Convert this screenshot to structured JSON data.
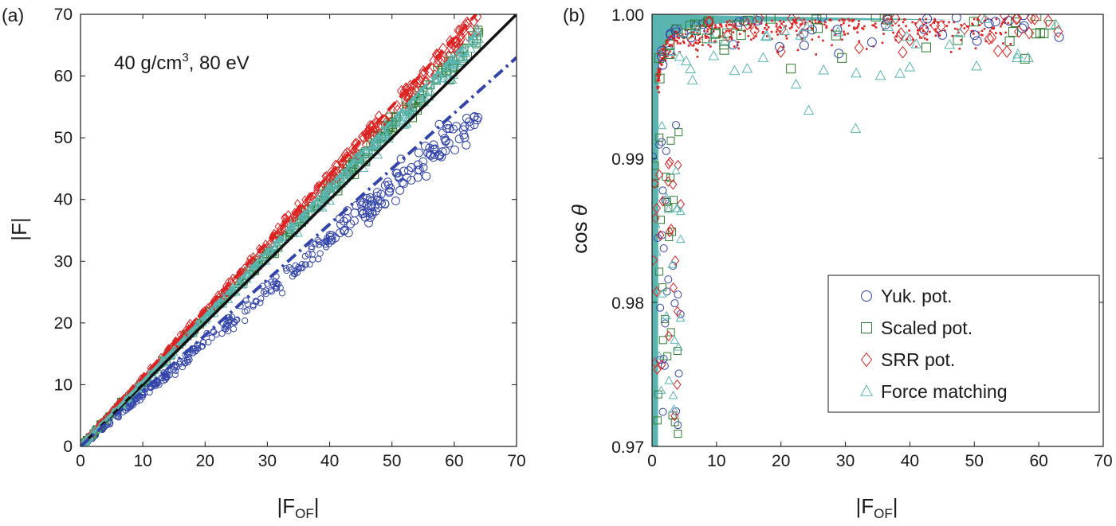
{
  "colors": {
    "yuk": "#3344aa",
    "scaled": "#2e7d32",
    "srr": "#dd2222",
    "force": "#5ab5b0",
    "ideal": "#111111"
  },
  "chart_data": [
    {
      "type": "scatter",
      "panel_label": "(a)",
      "annotation": {
        "text": "40 g/cm",
        "sup": "3",
        "tail": ", 80 eV"
      },
      "xlabel": {
        "main": "|F",
        "sub": "OF",
        "close": "|"
      },
      "ylabel": "|F|",
      "xlim": [
        0,
        70
      ],
      "ylim": [
        0,
        70
      ],
      "xticks": [
        "0",
        "10",
        "20",
        "30",
        "40",
        "50",
        "60",
        "70"
      ],
      "yticks": [
        "0",
        "10",
        "20",
        "30",
        "40",
        "50",
        "60",
        "70"
      ],
      "lines": [
        {
          "series": "ideal",
          "style": "solid",
          "points": [
            [
              0,
              0
            ],
            [
              70,
              70
            ]
          ]
        },
        {
          "series": "srr",
          "style": "dashed",
          "points": [
            [
              0,
              0
            ],
            [
              63.5,
              70
            ]
          ]
        },
        {
          "series": "force",
          "style": "dashed",
          "points": [
            [
              0,
              0
            ],
            [
              64,
              67.5
            ]
          ]
        },
        {
          "series": "yuk",
          "style": "dashdot",
          "points": [
            [
              0,
              0
            ],
            [
              70,
              63
            ]
          ]
        }
      ],
      "series": [
        {
          "key": "yuk",
          "marker": "circle",
          "slope": 0.84,
          "xmax": 64,
          "values_sample": [
            [
              5,
              4.2
            ],
            [
              20,
              16.8
            ],
            [
              40,
              33.5
            ],
            [
              60,
              50.5
            ],
            [
              64,
              53.5
            ]
          ]
        },
        {
          "key": "scaled",
          "marker": "square",
          "slope": 1.04,
          "xmax": 64,
          "values_sample": [
            [
              5,
              5.2
            ],
            [
              20,
              20.8
            ],
            [
              40,
              41.6
            ],
            [
              60,
              62.4
            ],
            [
              64,
              66.5
            ]
          ]
        },
        {
          "key": "srr",
          "marker": "diamond",
          "slope": 1.09,
          "xmax": 64,
          "values_sample": [
            [
              5,
              5.5
            ],
            [
              20,
              21.8
            ],
            [
              40,
              43.6
            ],
            [
              60,
              65.4
            ],
            [
              64,
              69.5
            ]
          ]
        },
        {
          "key": "force",
          "marker": "triangle",
          "slope": 1.03,
          "xmax": 64,
          "values_sample": [
            [
              5,
              5.2
            ],
            [
              20,
              20.6
            ],
            [
              40,
              41.2
            ],
            [
              60,
              61.8
            ],
            [
              64,
              66
            ]
          ]
        }
      ]
    },
    {
      "type": "scatter",
      "panel_label": "(b)",
      "xlabel": {
        "main": "|F",
        "sub": "OF",
        "close": "|"
      },
      "ylabel": {
        "main": "cos ",
        "theta": "θ"
      },
      "xlim": [
        0,
        70
      ],
      "ylim": [
        0.97,
        1.0
      ],
      "xticks": [
        "0",
        "10",
        "20",
        "30",
        "40",
        "50",
        "60",
        "70"
      ],
      "yticks": [
        "0.97",
        "0.98",
        "0.99",
        "1.00"
      ],
      "series": [
        {
          "key": "yuk",
          "marker": "circle"
        },
        {
          "key": "scaled",
          "marker": "square"
        },
        {
          "key": "srr",
          "marker": "diamond"
        },
        {
          "key": "force",
          "marker": "triangle"
        }
      ],
      "legend": {
        "position": "lower-right",
        "entries": [
          {
            "key": "yuk",
            "label": "Yuk. pot."
          },
          {
            "key": "scaled",
            "label": "Scaled pot."
          },
          {
            "key": "srr",
            "label": "SRR pot."
          },
          {
            "key": "force",
            "label": "Force matching"
          }
        ]
      }
    }
  ]
}
